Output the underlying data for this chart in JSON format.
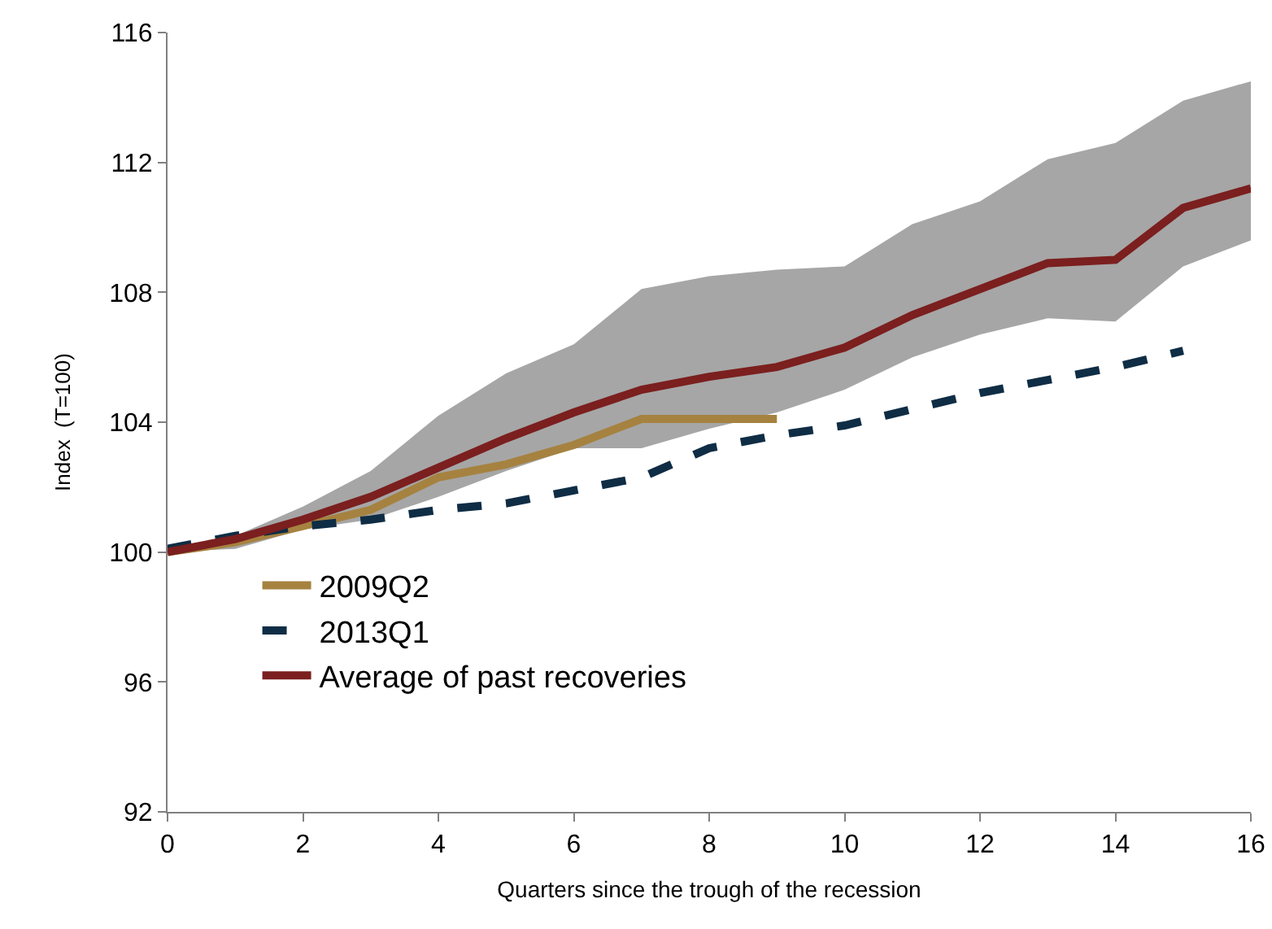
{
  "chart_data": {
    "type": "line",
    "xlabel": "Quarters since the trough of the recession",
    "ylabel": "Index  (T=100)",
    "x": [
      0,
      1,
      2,
      3,
      4,
      5,
      6,
      7,
      8,
      9,
      10,
      11,
      12,
      13,
      14,
      15,
      16
    ],
    "series": [
      {
        "name": "2009Q2",
        "color": "#a68240",
        "line_style": "solid",
        "values": [
          100,
          100.3,
          100.8,
          101.3,
          102.3,
          102.7,
          103.3,
          104.1,
          104.1,
          104.1,
          null,
          null,
          null,
          null,
          null,
          null,
          null
        ]
      },
      {
        "name": "2013Q1",
        "color": "#0f2d45",
        "line_style": "dashed",
        "values": [
          100.1,
          100.5,
          100.8,
          101.0,
          101.3,
          101.5,
          101.9,
          102.3,
          103.2,
          103.6,
          103.9,
          104.4,
          104.9,
          105.3,
          105.7,
          106.2,
          null
        ]
      },
      {
        "name": "Average of past recoveries",
        "color": "#7b1f1f",
        "line_style": "solid",
        "values": [
          100,
          100.4,
          101.0,
          101.7,
          102.6,
          103.5,
          104.3,
          105.0,
          105.4,
          105.7,
          106.3,
          107.3,
          108.1,
          108.9,
          109.0,
          110.6,
          111.2
        ],
        "lower": [
          100,
          100.1,
          100.7,
          101.0,
          101.7,
          102.5,
          103.2,
          103.2,
          103.8,
          104.3,
          105.0,
          106.0,
          106.7,
          107.2,
          107.1,
          108.8,
          109.6
        ],
        "upper": [
          100,
          100.5,
          101.4,
          102.5,
          104.2,
          105.5,
          106.4,
          108.1,
          108.5,
          108.7,
          108.8,
          110.1,
          110.8,
          112.1,
          112.6,
          113.9,
          114.5
        ]
      }
    ],
    "xlim": [
      0,
      16
    ],
    "xticks": [
      0,
      2,
      4,
      6,
      8,
      10,
      12,
      14,
      16
    ],
    "ylim": [
      92,
      116
    ],
    "yticks": [
      92,
      96,
      100,
      104,
      108,
      112,
      116
    ],
    "grid": false,
    "legend": "bottom left",
    "marker": "none"
  }
}
